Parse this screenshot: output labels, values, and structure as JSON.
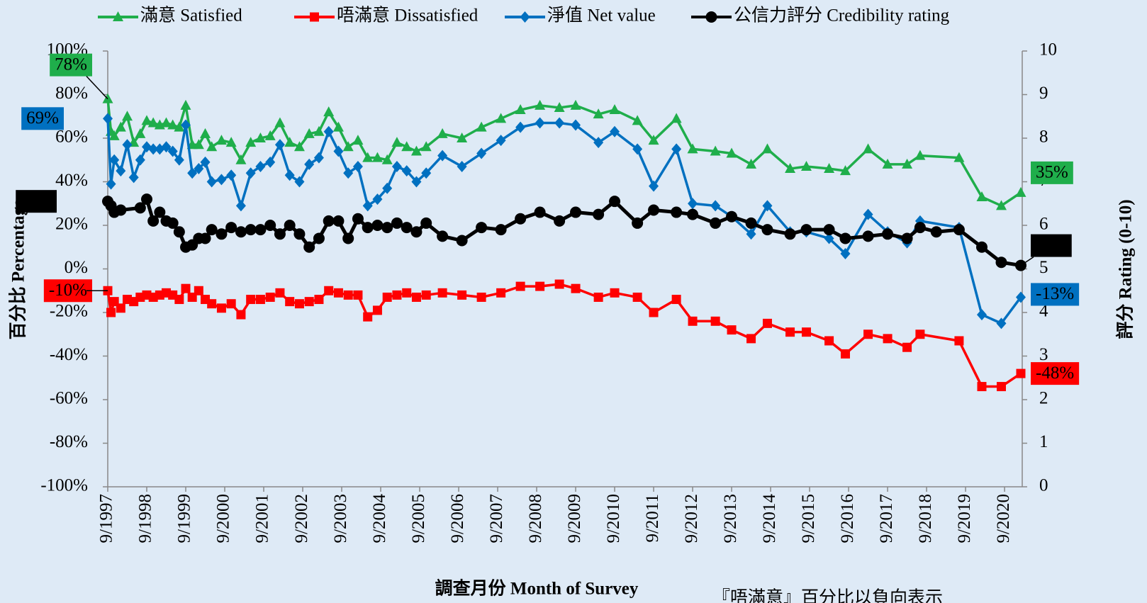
{
  "chart_data": {
    "type": "line",
    "xlabel": "調查月份 Month of Survey",
    "ylabel": "百分比 Percentage",
    "y2label": "評分 Rating (0-10)",
    "note": "『唔滿意』百分比以負向表示",
    "xlim": [
      "9/1997",
      "2/2021"
    ],
    "xticks": [
      "9/1997",
      "9/1998",
      "9/1999",
      "9/2000",
      "9/2001",
      "9/2002",
      "9/2003",
      "9/2004",
      "9/2005",
      "9/2006",
      "9/2007",
      "9/2008",
      "9/2009",
      "9/2010",
      "9/2011",
      "9/2012",
      "9/2013",
      "9/2014",
      "9/2015",
      "9/2016",
      "9/2017",
      "9/2018",
      "9/2019",
      "9/2020"
    ],
    "ylim": [
      -100,
      100
    ],
    "yticks": [
      {
        "value": -100,
        "label": "-100%"
      },
      {
        "value": -80,
        "label": "-80%"
      },
      {
        "value": -60,
        "label": "-60%"
      },
      {
        "value": -40,
        "label": "-40%"
      },
      {
        "value": -20,
        "label": "-20%"
      },
      {
        "value": 0,
        "label": "0%"
      },
      {
        "value": 20,
        "label": "20%"
      },
      {
        "value": 40,
        "label": "40%"
      },
      {
        "value": 60,
        "label": "60%"
      },
      {
        "value": 80,
        "label": "80%"
      },
      {
        "value": 100,
        "label": "100%"
      }
    ],
    "y2lim": [
      0,
      10
    ],
    "y2ticks": [
      0,
      1,
      2,
      3,
      4,
      5,
      6,
      7,
      8,
      9,
      10
    ],
    "x": [
      "9/1997",
      "10/1997",
      "11/1997",
      "1/1998",
      "3/1998",
      "5/1998",
      "7/1998",
      "9/1998",
      "11/1998",
      "1/1999",
      "3/1999",
      "5/1999",
      "7/1999",
      "9/1999",
      "11/1999",
      "1/2000",
      "3/2000",
      "5/2000",
      "8/2000",
      "11/2000",
      "2/2001",
      "5/2001",
      "8/2001",
      "11/2001",
      "2/2002",
      "5/2002",
      "8/2002",
      "11/2002",
      "2/2003",
      "5/2003",
      "8/2003",
      "11/2003",
      "2/2004",
      "5/2004",
      "8/2004",
      "11/2004",
      "2/2005",
      "5/2005",
      "8/2005",
      "11/2005",
      "4/2006",
      "10/2006",
      "4/2007",
      "10/2007",
      "4/2008",
      "10/2008",
      "4/2009",
      "9/2009",
      "4/2010",
      "9/2010",
      "4/2011",
      "9/2011",
      "4/2012",
      "9/2012",
      "4/2013",
      "9/2013",
      "3/2014",
      "8/2014",
      "3/2015",
      "8/2015",
      "3/2016",
      "8/2016",
      "3/2017",
      "9/2017",
      "3/2018",
      "7/2018",
      "7/2019",
      "2/2020",
      "8/2020",
      "2/2021"
    ],
    "series": [
      {
        "name": "滿意 Satisfied",
        "color": "#1fae4b",
        "marker": "triangle",
        "values": [
          78,
          63,
          61,
          65,
          70,
          58,
          62,
          68,
          67,
          66,
          67,
          66,
          65,
          75,
          57,
          57,
          62,
          56,
          59,
          58,
          50,
          58,
          60,
          61,
          67,
          58,
          56,
          62,
          63,
          72,
          65,
          56,
          59,
          51,
          51,
          50,
          58,
          56,
          54,
          56,
          62,
          60,
          65,
          69,
          73,
          75,
          74,
          75,
          71,
          73,
          68,
          59,
          69,
          55,
          54,
          53,
          48,
          55,
          46,
          47,
          46,
          45,
          55,
          48,
          48,
          52,
          51,
          33,
          29,
          35
        ],
        "value_labels": {
          "0": "78%",
          "69": "35%"
        }
      },
      {
        "name": "唔滿意 Dissatisfied",
        "color": "#ff0000",
        "marker": "square",
        "values": [
          -10,
          -20,
          -15,
          -18,
          -14,
          -15,
          -13,
          -12,
          -13,
          -12,
          -11,
          -12,
          -14,
          -9,
          -13,
          -10,
          -14,
          -16,
          -18,
          -16,
          -21,
          -14,
          -14,
          -13,
          -11,
          -15,
          -16,
          -15,
          -14,
          -10,
          -11,
          -12,
          -12,
          -22,
          -19,
          -13,
          -12,
          -11,
          -13,
          -12,
          -11,
          -12,
          -13,
          -11,
          -8,
          -8,
          -7,
          -9,
          -13,
          -11,
          -13,
          -20,
          -14,
          -24,
          -24,
          -28,
          -32,
          -25,
          -29,
          -29,
          -33,
          -39,
          -30,
          -32,
          -36,
          -30,
          -33,
          -54,
          -54,
          -48
        ],
        "value_labels": {
          "0": "-10%",
          "69": "-48%"
        }
      },
      {
        "name": "淨值 Net value",
        "color": "#0070c0",
        "marker": "diamond",
        "values": [
          69,
          39,
          50,
          45,
          57,
          42,
          50,
          56,
          55,
          55,
          56,
          54,
          50,
          66,
          44,
          46,
          49,
          40,
          41,
          43,
          29,
          44,
          47,
          49,
          57,
          43,
          40,
          48,
          51,
          63,
          54,
          44,
          47,
          29,
          32,
          37,
          47,
          45,
          40,
          44,
          52,
          47,
          53,
          59,
          65,
          67,
          67,
          66,
          58,
          63,
          55,
          38,
          55,
          30,
          29,
          24,
          16,
          29,
          17,
          17,
          14,
          7,
          25,
          17,
          12,
          22,
          19,
          -21,
          -25,
          -13
        ],
        "value_labels": {
          "0": "69%",
          "69": "-13%"
        }
      },
      {
        "name": "公信力評分 Credibility rating",
        "color": "#000000",
        "marker": "circle",
        "axis": "y2",
        "x": [
          "9/1997",
          "10/1997",
          "11/1997",
          "1/1998",
          "7/1998",
          "9/1998",
          "11/1998",
          "1/1999",
          "3/1999",
          "5/1999",
          "7/1999",
          "9/1999",
          "11/1999",
          "1/2000",
          "3/2000",
          "5/2000",
          "8/2000",
          "11/2000",
          "2/2001",
          "5/2001",
          "8/2001",
          "11/2001",
          "2/2002",
          "5/2002",
          "8/2002",
          "11/2002",
          "2/2003",
          "5/2003",
          "8/2003",
          "11/2003",
          "2/2004",
          "5/2004",
          "8/2004",
          "11/2004",
          "2/2005",
          "5/2005",
          "8/2005",
          "11/2005",
          "4/2006",
          "10/2006",
          "4/2007",
          "10/2007",
          "4/2008",
          "10/2008",
          "4/2009",
          "9/2009",
          "4/2010",
          "9/2010",
          "4/2011",
          "9/2011",
          "4/2012",
          "9/2012",
          "4/2013",
          "9/2013",
          "3/2014",
          "8/2014",
          "3/2015",
          "8/2015",
          "3/2016",
          "8/2016",
          "3/2017",
          "9/2017",
          "3/2018",
          "7/2018",
          "12/2018",
          "7/2019",
          "2/2020",
          "8/2020",
          "2/2021"
        ],
        "values": [
          6.55,
          6.45,
          6.3,
          6.35,
          6.4,
          6.6,
          6.1,
          6.3,
          6.1,
          6.05,
          5.85,
          5.5,
          5.55,
          5.7,
          5.7,
          5.9,
          5.8,
          5.95,
          5.85,
          5.9,
          5.9,
          6.0,
          5.8,
          6.0,
          5.8,
          5.5,
          5.7,
          6.1,
          6.1,
          5.7,
          6.15,
          5.95,
          6.0,
          5.95,
          6.05,
          5.95,
          5.85,
          6.05,
          5.75,
          5.65,
          5.95,
          5.9,
          6.15,
          6.3,
          6.1,
          6.3,
          6.25,
          6.55,
          6.05,
          6.35,
          6.3,
          6.25,
          6.05,
          6.2,
          6.05,
          5.9,
          5.8,
          5.9,
          5.9,
          5.7,
          5.75,
          5.8,
          5.7,
          5.95,
          5.85,
          5.9,
          5.5,
          5.15,
          5.08
        ],
        "value_labels": {
          "0": "6.55",
          "68": "5.08"
        }
      }
    ]
  }
}
